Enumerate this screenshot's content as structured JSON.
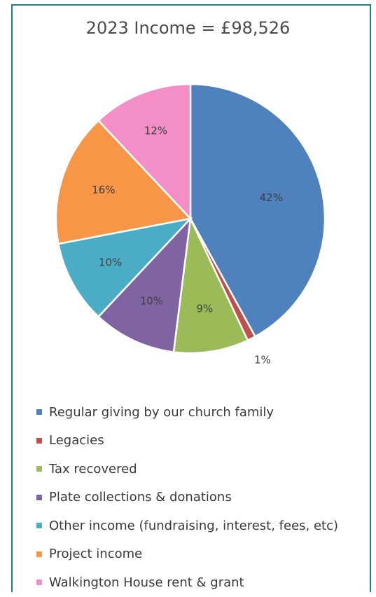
{
  "chart_data": {
    "type": "pie",
    "title": "2023 Income = £98,526",
    "legend_position": "bottom",
    "slices": [
      {
        "label": "Regular giving by our church family",
        "value": 42,
        "display": "42%",
        "color": "#4f81bd"
      },
      {
        "label": "Legacies",
        "value": 1,
        "display": "1%",
        "color": "#c0504d"
      },
      {
        "label": "Tax recovered",
        "value": 9,
        "display": "9%",
        "color": "#9bbb59"
      },
      {
        "label": "Plate collections & donations",
        "value": 10,
        "display": "10%",
        "color": "#8064a2"
      },
      {
        "label": "Other income (fundraising, interest, fees, etc)",
        "value": 10,
        "display": "10%",
        "color": "#4bacc6"
      },
      {
        "label": "Project income",
        "value": 16,
        "display": "16%",
        "color": "#f79646"
      },
      {
        "label": "Walkington House rent & grant",
        "value": 12,
        "display": "12%",
        "color": "#f38fc6"
      }
    ]
  }
}
